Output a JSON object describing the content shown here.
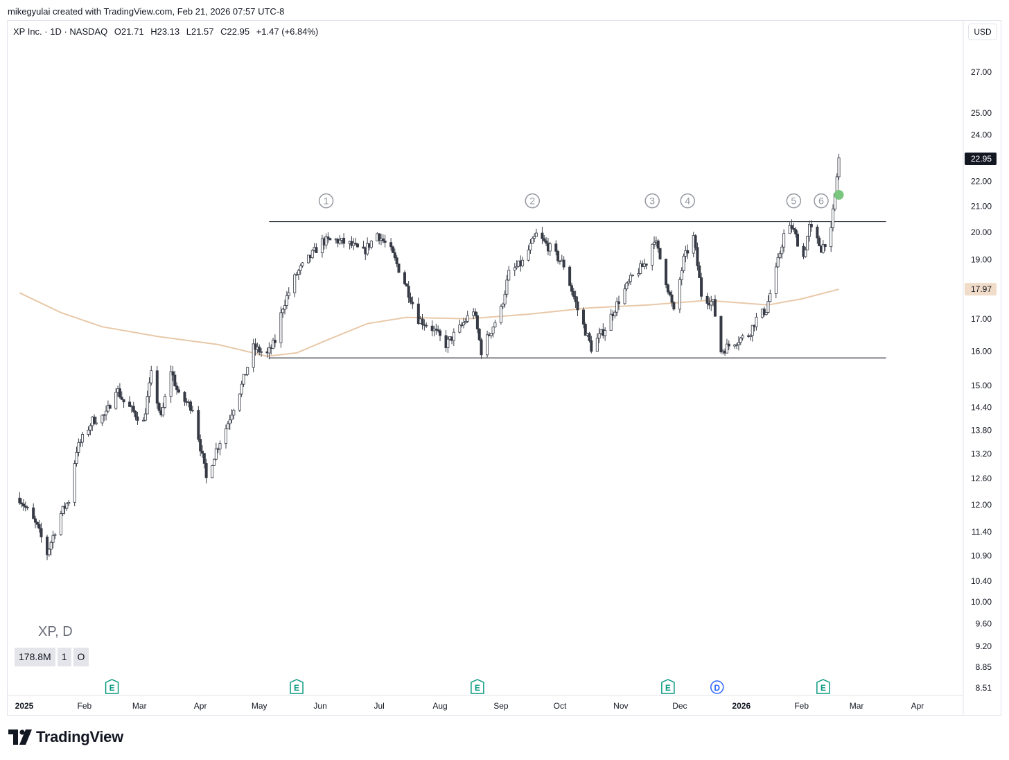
{
  "header": {
    "attribution": "mikegyulai created with TradingView.com, Feb 21, 2026 07:57 UTC-8"
  },
  "legend": {
    "symbol": "XP Inc. · 1D · NASDAQ",
    "open": "O21.71",
    "high": "H23.13",
    "low": "L21.57",
    "close": "C22.95",
    "change": "+1.47 (+6.84%)"
  },
  "currency": "USD",
  "watermark": "XP, D",
  "indicator_pills": [
    "178.8M",
    "1",
    "O"
  ],
  "logo_text": "TradingView",
  "colors": {
    "up_fill": "#ffffff",
    "down_fill": "#363a45",
    "wick": "#363a45",
    "ma": "#e8c8a8",
    "levels": "#131722",
    "marker_circle": "#9598a1",
    "earnings": "#089981",
    "dividend": "#2962ff",
    "last_price_label": "#131722",
    "ma_label": "#f0dcc8",
    "signal_dot": "#7bc67e"
  },
  "chart_data": {
    "type": "candlestick",
    "symbol": "XP",
    "interval": "1D",
    "scale": "log",
    "y_ticks": [
      27.0,
      25.0,
      24.0,
      22.0,
      21.0,
      20.0,
      19.0,
      17.0,
      16.0,
      15.0,
      14.4,
      13.8,
      13.2,
      12.6,
      12.0,
      11.4,
      10.9,
      10.4,
      10.0,
      9.6,
      9.2,
      8.85,
      8.51
    ],
    "y_range": [
      8.44,
      29.0
    ],
    "x_labels": [
      {
        "label": "2025",
        "date": "2025-01-01",
        "bold": true
      },
      {
        "label": "Feb",
        "date": "2025-02-01"
      },
      {
        "label": "Mar",
        "date": "2025-03-01"
      },
      {
        "label": "Apr",
        "date": "2025-04-01"
      },
      {
        "label": "May",
        "date": "2025-05-01"
      },
      {
        "label": "Jun",
        "date": "2025-06-01"
      },
      {
        "label": "Jul",
        "date": "2025-07-01"
      },
      {
        "label": "Aug",
        "date": "2025-08-01"
      },
      {
        "label": "Sep",
        "date": "2025-09-01"
      },
      {
        "label": "Oct",
        "date": "2025-10-01"
      },
      {
        "label": "Nov",
        "date": "2025-11-01"
      },
      {
        "label": "Dec",
        "date": "2025-12-01"
      },
      {
        "label": "2026",
        "date": "2026-01-01",
        "bold": true
      },
      {
        "label": "Feb",
        "date": "2026-02-01"
      },
      {
        "label": "Mar",
        "date": "2026-03-01"
      },
      {
        "label": "Apr",
        "date": "2026-04-01"
      }
    ],
    "price_path": [
      [
        "2024-12-30",
        12.15
      ],
      [
        "2025-01-08",
        11.5
      ],
      [
        "2025-01-13",
        10.95
      ],
      [
        "2025-01-20",
        11.8
      ],
      [
        "2025-01-24",
        12.1
      ],
      [
        "2025-01-28",
        13.3
      ],
      [
        "2025-02-05",
        14.05
      ],
      [
        "2025-02-12",
        14.2
      ],
      [
        "2025-02-17",
        14.95
      ],
      [
        "2025-02-21",
        14.55
      ],
      [
        "2025-03-03",
        14.0
      ],
      [
        "2025-03-07",
        15.3
      ],
      [
        "2025-03-12",
        14.1
      ],
      [
        "2025-03-17",
        15.45
      ],
      [
        "2025-03-21",
        14.7
      ],
      [
        "2025-03-28",
        14.4
      ],
      [
        "2025-04-04",
        12.6
      ],
      [
        "2025-04-09",
        13.3
      ],
      [
        "2025-04-14",
        13.85
      ],
      [
        "2025-04-22",
        15.0
      ],
      [
        "2025-04-28",
        16.1
      ],
      [
        "2025-05-05",
        15.9
      ],
      [
        "2025-05-09",
        16.3
      ],
      [
        "2025-05-13",
        17.4
      ],
      [
        "2025-05-20",
        18.5
      ],
      [
        "2025-05-27",
        19.1
      ],
      [
        "2025-06-02",
        19.65
      ],
      [
        "2025-06-09",
        19.7
      ],
      [
        "2025-06-16",
        19.55
      ],
      [
        "2025-06-23",
        19.25
      ],
      [
        "2025-06-30",
        19.95
      ],
      [
        "2025-07-07",
        19.3
      ],
      [
        "2025-07-14",
        18.2
      ],
      [
        "2025-07-21",
        17.0
      ],
      [
        "2025-07-28",
        16.7
      ],
      [
        "2025-08-04",
        16.2
      ],
      [
        "2025-08-11",
        16.7
      ],
      [
        "2025-08-18",
        17.3
      ],
      [
        "2025-08-22",
        16.0
      ],
      [
        "2025-09-01",
        17.3
      ],
      [
        "2025-09-05",
        18.5
      ],
      [
        "2025-09-12",
        18.9
      ],
      [
        "2025-09-19",
        19.9
      ],
      [
        "2025-09-26",
        19.4
      ],
      [
        "2025-10-03",
        18.8
      ],
      [
        "2025-10-10",
        17.3
      ],
      [
        "2025-10-17",
        16.1
      ],
      [
        "2025-10-24",
        16.7
      ],
      [
        "2025-10-31",
        17.6
      ],
      [
        "2025-11-07",
        18.4
      ],
      [
        "2025-11-14",
        18.9
      ],
      [
        "2025-11-18",
        19.8
      ],
      [
        "2025-11-25",
        18.0
      ],
      [
        "2025-11-28",
        17.2
      ],
      [
        "2025-12-03",
        19.0
      ],
      [
        "2025-12-08",
        19.8
      ],
      [
        "2025-12-12",
        17.8
      ],
      [
        "2025-12-18",
        17.5
      ],
      [
        "2025-12-22",
        16.0
      ],
      [
        "2025-12-29",
        16.3
      ],
      [
        "2026-01-05",
        16.5
      ],
      [
        "2026-01-09",
        17.0
      ],
      [
        "2026-01-14",
        17.3
      ],
      [
        "2026-01-19",
        18.6
      ],
      [
        "2026-01-23",
        19.9
      ],
      [
        "2026-01-27",
        20.2
      ],
      [
        "2026-02-02",
        19.1
      ],
      [
        "2026-02-05",
        20.2
      ],
      [
        "2026-02-11",
        19.4
      ],
      [
        "2026-02-16",
        20.0
      ],
      [
        "2026-02-18",
        21.45
      ],
      [
        "2026-02-20",
        22.95
      ]
    ],
    "moving_average": [
      [
        "2024-12-30",
        17.85
      ],
      [
        "2025-01-20",
        17.2
      ],
      [
        "2025-02-10",
        16.75
      ],
      [
        "2025-03-10",
        16.45
      ],
      [
        "2025-04-10",
        16.2
      ],
      [
        "2025-05-05",
        15.85
      ],
      [
        "2025-05-20",
        15.95
      ],
      [
        "2025-06-05",
        16.35
      ],
      [
        "2025-06-25",
        16.85
      ],
      [
        "2025-07-15",
        17.05
      ],
      [
        "2025-08-15",
        17.0
      ],
      [
        "2025-09-15",
        17.15
      ],
      [
        "2025-10-15",
        17.35
      ],
      [
        "2025-11-15",
        17.45
      ],
      [
        "2025-12-15",
        17.6
      ],
      [
        "2026-01-15",
        17.45
      ],
      [
        "2026-02-01",
        17.65
      ],
      [
        "2026-02-20",
        17.97
      ]
    ],
    "resistance_level": {
      "value": 20.4,
      "start": "2025-05-06",
      "end": "2026-03-16"
    },
    "support_level": {
      "value": 15.8,
      "start": "2025-05-06",
      "end": "2026-03-16"
    },
    "touch_markers": [
      {
        "label": "1",
        "date": "2025-06-04"
      },
      {
        "label": "2",
        "date": "2025-09-17"
      },
      {
        "label": "3",
        "date": "2025-11-17"
      },
      {
        "label": "4",
        "date": "2025-12-05"
      },
      {
        "label": "5",
        "date": "2026-01-28"
      },
      {
        "label": "6",
        "date": "2026-02-11"
      }
    ],
    "events": [
      {
        "type": "E",
        "date": "2025-02-15"
      },
      {
        "type": "E",
        "date": "2025-05-20"
      },
      {
        "type": "E",
        "date": "2025-08-20"
      },
      {
        "type": "E",
        "date": "2025-11-25"
      },
      {
        "type": "D",
        "date": "2025-12-20"
      },
      {
        "type": "E",
        "date": "2026-02-12"
      }
    ],
    "last_price": {
      "value": 22.95,
      "label": "22.95"
    },
    "ma_value": {
      "value": 17.97,
      "label": "17.97"
    },
    "signal_marker": {
      "date": "2026-02-20",
      "value": 21.45
    }
  }
}
